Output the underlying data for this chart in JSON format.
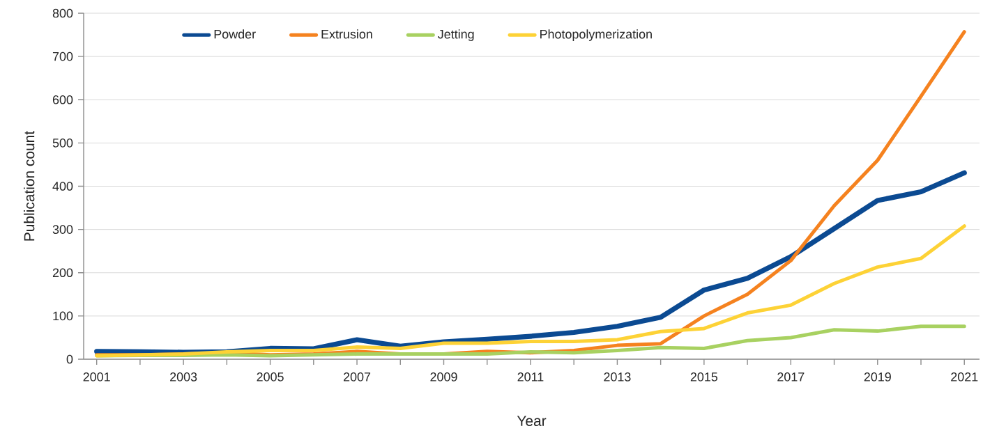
{
  "chart_data": {
    "type": "line",
    "xlabel": "Year",
    "ylabel": "Publication count",
    "x": [
      2001,
      2002,
      2003,
      2004,
      2005,
      2006,
      2007,
      2008,
      2009,
      2010,
      2011,
      2012,
      2013,
      2014,
      2015,
      2016,
      2017,
      2018,
      2019,
      2020,
      2021
    ],
    "series": [
      {
        "name": "Powder",
        "color": "#0b4a92",
        "values": [
          18,
          17,
          16,
          17,
          25,
          24,
          45,
          30,
          40,
          46,
          53,
          62,
          76,
          97,
          160,
          187,
          237,
          302,
          367,
          387,
          431
        ]
      },
      {
        "name": "Extrusion",
        "color": "#f5821f",
        "values": [
          10,
          10,
          12,
          15,
          10,
          12,
          18,
          12,
          12,
          18,
          15,
          20,
          32,
          36,
          100,
          150,
          228,
          355,
          460,
          608,
          757
        ]
      },
      {
        "name": "Jetting",
        "color": "#a8d161",
        "values": [
          8,
          9,
          9,
          10,
          8,
          10,
          12,
          12,
          12,
          12,
          17,
          15,
          20,
          27,
          25,
          43,
          50,
          68,
          65,
          76,
          76
        ]
      },
      {
        "name": "Photopolymerization",
        "color": "#fdd236",
        "values": [
          8,
          10,
          12,
          17,
          20,
          20,
          28,
          25,
          37,
          37,
          41,
          41,
          45,
          64,
          71,
          107,
          125,
          175,
          213,
          233,
          308
        ]
      }
    ],
    "xlim": [
      2000.7,
      2021.35
    ],
    "xticks": [
      2001,
      {
        "value": 2002,
        "label": null
      },
      2003,
      {
        "value": 2004,
        "label": null
      },
      2005,
      {
        "value": 2006,
        "label": null
      },
      2007,
      {
        "value": 2008,
        "label": null
      },
      2009,
      {
        "value": 2010,
        "label": null
      },
      2011,
      {
        "value": 2012,
        "label": null
      },
      2013,
      {
        "value": 2014,
        "label": null
      },
      2015,
      {
        "value": 2016,
        "label": null
      },
      2017,
      {
        "value": 2018,
        "label": null
      },
      2019,
      {
        "value": 2020,
        "label": null
      },
      2021
    ],
    "ylim": [
      0,
      800
    ],
    "yticks": [
      0,
      100,
      200,
      300,
      400,
      500,
      600,
      700,
      800
    ],
    "grid": "y",
    "legend": "top left",
    "marker": "none",
    "line_style": "solid"
  }
}
